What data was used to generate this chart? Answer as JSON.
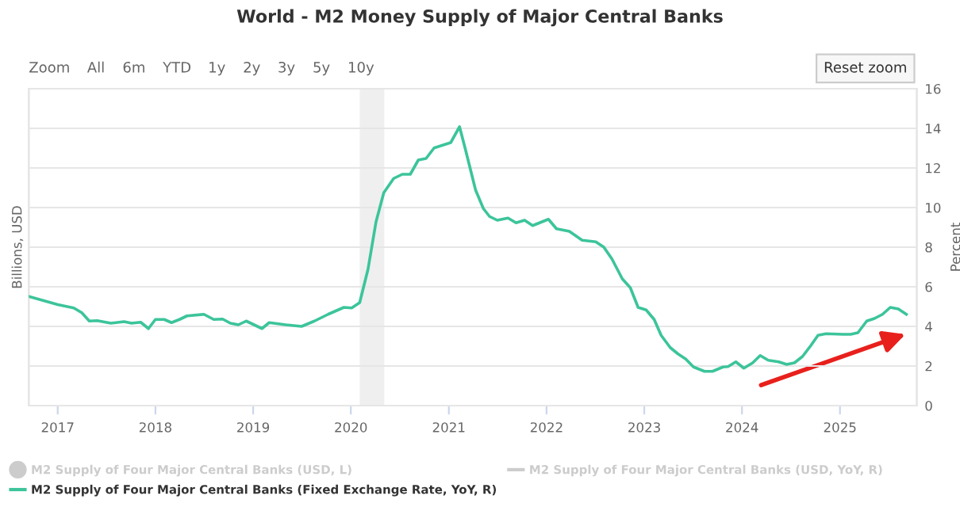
{
  "chart_data": {
    "type": "line",
    "title": "World - M2 Money Supply of Major Central Banks",
    "ylabel": "Billions, USD",
    "y2label": "Percent",
    "xlim": [
      "2016-09",
      "2025-10"
    ],
    "xticks": [
      "2017",
      "2018",
      "2019",
      "2020",
      "2021",
      "2022",
      "2023",
      "2024",
      "2025"
    ],
    "y2lim": [
      0,
      16
    ],
    "y2ticks": [
      0,
      2,
      4,
      6,
      8,
      10,
      12,
      14,
      16
    ],
    "grid": "y",
    "legend": "bottom",
    "annotations": [
      "Zoom",
      "All",
      "6m",
      "YTD",
      "1y",
      "2y",
      "3y",
      "5y",
      "10y",
      "Reset zoom"
    ],
    "bands": [
      {
        "axis": "x",
        "from": "2020-02-03",
        "to": "2020-05-05",
        "color": "#efefef"
      }
    ],
    "series": [
      {
        "name": "M2 Supply of Four Major Central Banks (USD, L)",
        "type": "scatter",
        "marker": "circle",
        "color": "#cccccc"
      },
      {
        "name": "M2 Supply of Four Major Central Banks (USD, YoY, R)",
        "type": "line",
        "axis": "y2",
        "color": "#cccccc"
      },
      {
        "name": "M2 Supply of Four Major Central Banks (Fixed Exchange Rate, YoY, R)",
        "axis": "y2",
        "color": "#3cc49a",
        "x": [
          "2016-09-06",
          "2017-01-01",
          "2017-03-02",
          "2017-04-01",
          "2017-04-29",
          "2017-05-28",
          "2017-07-19",
          "2017-09-06",
          "2017-10-04",
          "2017-11-07",
          "2017-12-06",
          "2018-01-01",
          "2018-02-03",
          "2018-03-02",
          "2018-04-01",
          "2018-04-29",
          "2018-07-01",
          "2018-08-07",
          "2018-09-09",
          "2018-10-08",
          "2018-11-07",
          "2018-12-06",
          "2019-02-03",
          "2019-03-02",
          "2019-05-03",
          "2019-07-01",
          "2019-08-18",
          "2019-10-08",
          "2019-12-06",
          "2020-01-04",
          "2020-02-03",
          "2020-03-05",
          "2020-04-04",
          "2020-05-03",
          "2020-06-09",
          "2020-07-11",
          "2020-08-10",
          "2020-09-09",
          "2020-10-08",
          "2020-11-07",
          "2021-01-08",
          "2021-02-10",
          "2021-03-05",
          "2021-04-11",
          "2021-05-10",
          "2021-06-02",
          "2021-07-01",
          "2021-08-10",
          "2021-09-09",
          "2021-10-11",
          "2021-11-10",
          "2022-01-08",
          "2022-02-07",
          "2022-03-27",
          "2022-05-14",
          "2022-07-04",
          "2022-08-03",
          "2022-09-02",
          "2022-10-11",
          "2022-11-10",
          "2022-12-09",
          "2023-01-08",
          "2023-02-07",
          "2023-03-05",
          "2023-04-08",
          "2023-05-07",
          "2023-06-05",
          "2023-07-04",
          "2023-08-14",
          "2023-09-13",
          "2023-10-22",
          "2023-11-10",
          "2023-12-09",
          "2024-01-08",
          "2024-02-10",
          "2024-03-09",
          "2024-04-08",
          "2024-05-17",
          "2024-06-16",
          "2024-07-15",
          "2024-08-14",
          "2024-09-13",
          "2024-10-11",
          "2024-11-10",
          "2025-01-11",
          "2025-02-10",
          "2025-03-09",
          "2025-04-11",
          "2025-05-10",
          "2025-06-09",
          "2025-07-08",
          "2025-08-07",
          "2025-09-06"
        ],
        "values": [
          5.55,
          5.1,
          4.93,
          4.69,
          4.27,
          4.29,
          4.16,
          4.24,
          4.16,
          4.21,
          3.89,
          4.35,
          4.35,
          4.19,
          4.35,
          4.53,
          4.61,
          4.35,
          4.37,
          4.16,
          4.08,
          4.27,
          3.89,
          4.19,
          4.08,
          4.0,
          4.27,
          4.61,
          4.96,
          4.93,
          5.2,
          6.88,
          9.28,
          10.75,
          11.47,
          11.68,
          11.68,
          12.4,
          12.48,
          13.01,
          13.28,
          14.08,
          12.88,
          10.88,
          9.95,
          9.55,
          9.36,
          9.47,
          9.23,
          9.36,
          9.09,
          9.41,
          8.93,
          8.8,
          8.35,
          8.27,
          8.0,
          7.41,
          6.4,
          5.95,
          4.96,
          4.83,
          4.35,
          3.55,
          2.93,
          2.61,
          2.35,
          1.95,
          1.73,
          1.73,
          1.95,
          1.97,
          2.21,
          1.89,
          2.16,
          2.53,
          2.29,
          2.21,
          2.08,
          2.16,
          2.48,
          3.01,
          3.55,
          3.63,
          3.6,
          3.6,
          3.68,
          4.27,
          4.4,
          4.61,
          4.96,
          4.88,
          4.61
        ]
      }
    ]
  }
}
